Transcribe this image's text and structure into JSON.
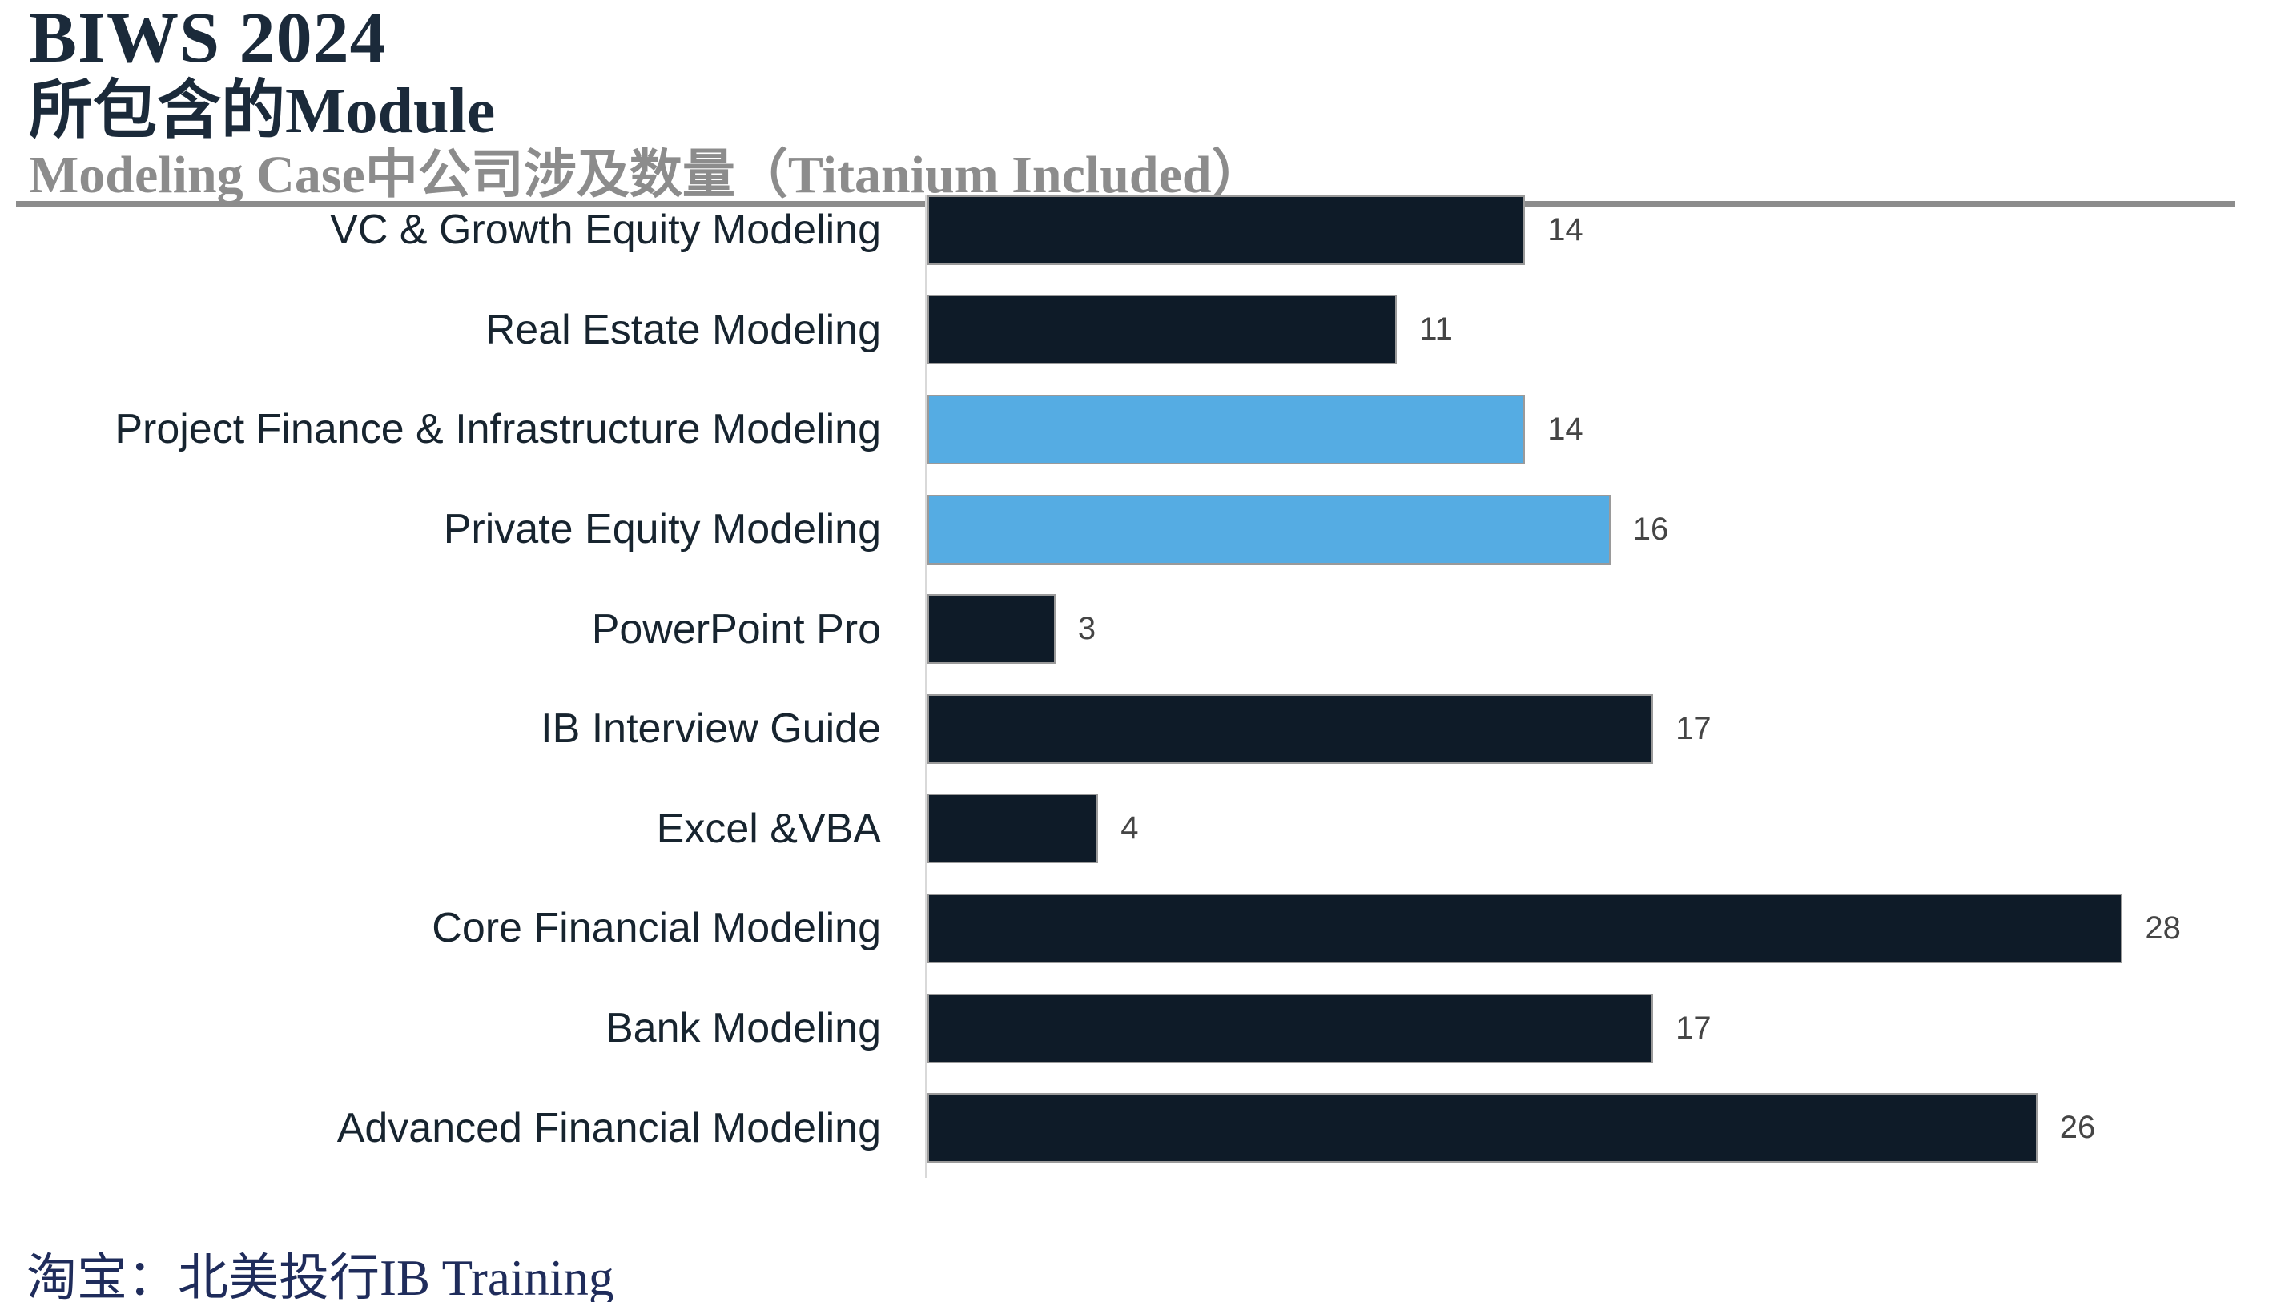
{
  "header": {
    "title_line1": "BIWS 2024",
    "title_line2": "所包含的Module",
    "subtitle": "Modeling Case中公司涉及数量（Titanium Included）"
  },
  "footer": {
    "source": "淘宝：北美投行IB Training"
  },
  "colors": {
    "title_navy": "#1B2A3A",
    "subtitle_gray": "#8C8C8C",
    "rule_gray": "#8C8C8C",
    "axis_gray": "#D9D9D9",
    "label_navy": "#17242F",
    "value_gray": "#454545",
    "bar_default": "#0E1B28",
    "bar_highlight": "#55ACE3",
    "bar_border": "#9A9A9A",
    "footer_navy": "#1F2C5B",
    "background": "#FFFFFF"
  },
  "chart_data": {
    "type": "bar",
    "orientation": "horizontal",
    "title": "Modeling Case中公司涉及数量（Titanium Included）",
    "xlabel": "",
    "ylabel": "",
    "grid": "off",
    "legend": "none",
    "value_labels_shown": true,
    "xlim": [
      0,
      32
    ],
    "categories": [
      "VC & Growth Equity Modeling",
      "Real Estate Modeling",
      "Project Finance & Infrastructure Modeling",
      "Private Equity Modeling",
      "PowerPoint Pro",
      "IB Interview Guide",
      "Excel &VBA",
      "Core Financial Modeling",
      "Bank Modeling",
      "Advanced Financial Modeling"
    ],
    "values": [
      14,
      11,
      14,
      16,
      3,
      17,
      4,
      28,
      17,
      26
    ],
    "highlighted": [
      false,
      false,
      true,
      true,
      false,
      false,
      false,
      false,
      false,
      false
    ]
  }
}
